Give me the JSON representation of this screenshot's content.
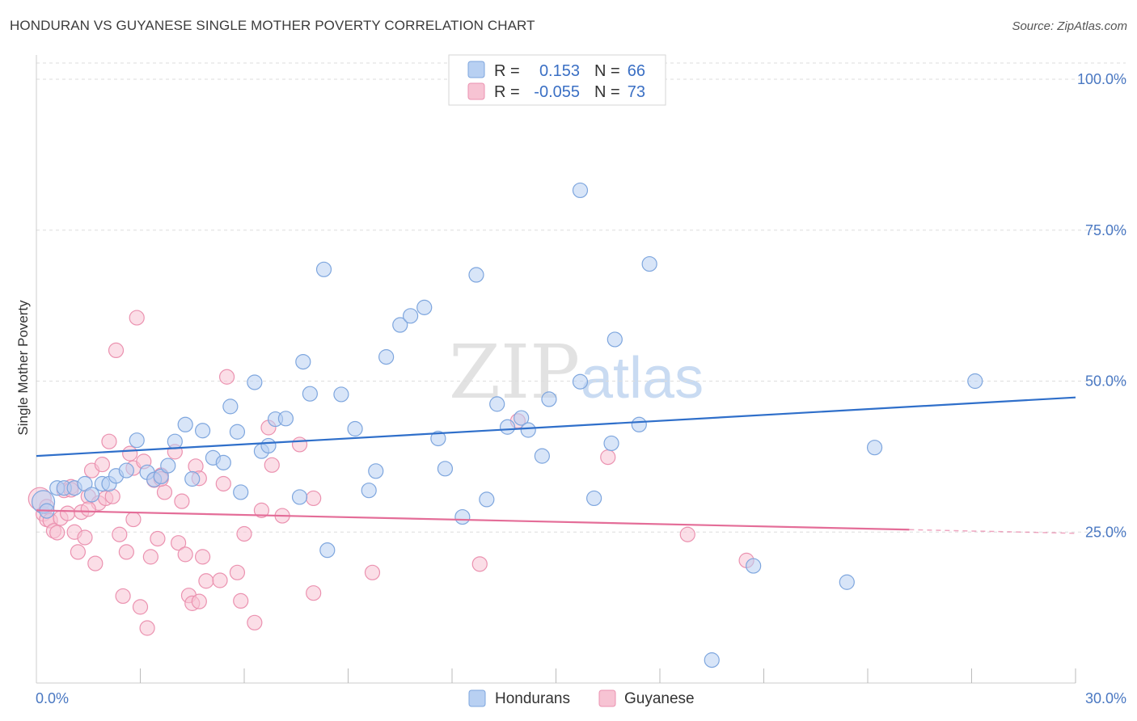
{
  "title": "HONDURAN VS GUYANESE SINGLE MOTHER POVERTY CORRELATION CHART",
  "source": "Source: ZipAtlas.com",
  "watermark": {
    "zip": "ZIP",
    "atlas": "atlas"
  },
  "colors": {
    "blue_fill": "#b8d0f2",
    "blue_stroke": "#7ea6de",
    "blue_line": "#2f6fca",
    "pink_fill": "#f7c3d3",
    "pink_stroke": "#eb92b0",
    "pink_line": "#e46d98",
    "tick_text": "#4a78c2",
    "grid": "#dddddd"
  },
  "legend": {
    "r_label": "R =",
    "n_label": "N =",
    "rows": [
      {
        "series": "Hondurans",
        "r": "0.153",
        "n": "66"
      },
      {
        "series": "Guyanese",
        "r": "-0.055",
        "n": "73"
      }
    ]
  },
  "chart_data": {
    "type": "scatter",
    "title": "HONDURAN VS GUYANESE SINGLE MOTHER POVERTY CORRELATION CHART",
    "xlabel": "",
    "ylabel": "Single Mother Poverty",
    "xlim": [
      0,
      30
    ],
    "ylim": [
      0,
      100
    ],
    "x_tick_labels": [
      "0.0%",
      "30.0%"
    ],
    "y_tick_labels": [
      {
        "value": 25,
        "label": "25.0%"
      },
      {
        "value": 50,
        "label": "50.0%"
      },
      {
        "value": 75,
        "label": "75.0%"
      },
      {
        "value": 100,
        "label": "100.0%"
      }
    ],
    "grid": "horizontal dashed",
    "legend_placement": "bottom",
    "series": [
      {
        "name": "Hondurans",
        "r": 0.153,
        "n": 66,
        "trend": {
          "x": [
            0,
            30
          ],
          "y": [
            37.6,
            47.3
          ]
        },
        "points": [
          [
            0.2,
            30.0
          ],
          [
            0.3,
            28.5
          ],
          [
            0.6,
            32.3
          ],
          [
            0.8,
            32.3
          ],
          [
            1.1,
            32.3
          ],
          [
            1.4,
            33.0
          ],
          [
            1.6,
            31.2
          ],
          [
            1.9,
            33.0
          ],
          [
            2.1,
            33.0
          ],
          [
            2.3,
            34.3
          ],
          [
            2.6,
            35.2
          ],
          [
            2.9,
            40.2
          ],
          [
            3.2,
            34.9
          ],
          [
            3.4,
            33.7
          ],
          [
            3.6,
            34.2
          ],
          [
            3.8,
            36.0
          ],
          [
            4.0,
            40.0
          ],
          [
            4.3,
            42.8
          ],
          [
            4.5,
            33.8
          ],
          [
            4.8,
            41.8
          ],
          [
            5.1,
            37.3
          ],
          [
            5.4,
            36.5
          ],
          [
            5.6,
            45.8
          ],
          [
            5.8,
            41.6
          ],
          [
            5.9,
            31.6
          ],
          [
            6.3,
            49.8
          ],
          [
            6.5,
            38.4
          ],
          [
            6.7,
            39.3
          ],
          [
            6.9,
            43.7
          ],
          [
            7.2,
            43.8
          ],
          [
            7.6,
            30.8
          ],
          [
            7.7,
            53.2
          ],
          [
            7.9,
            47.9
          ],
          [
            8.3,
            68.5
          ],
          [
            8.4,
            22.0
          ],
          [
            8.8,
            47.8
          ],
          [
            9.2,
            42.1
          ],
          [
            9.6,
            31.9
          ],
          [
            9.8,
            35.1
          ],
          [
            10.1,
            54.0
          ],
          [
            10.5,
            59.3
          ],
          [
            10.8,
            60.8
          ],
          [
            11.2,
            62.2
          ],
          [
            11.6,
            40.5
          ],
          [
            11.8,
            35.5
          ],
          [
            12.3,
            27.5
          ],
          [
            12.7,
            67.6
          ],
          [
            13.0,
            30.4
          ],
          [
            13.3,
            46.2
          ],
          [
            13.6,
            42.4
          ],
          [
            14.0,
            43.9
          ],
          [
            14.2,
            41.9
          ],
          [
            14.6,
            37.6
          ],
          [
            14.8,
            47.0
          ],
          [
            15.7,
            49.9
          ],
          [
            15.7,
            81.6
          ],
          [
            16.1,
            30.6
          ],
          [
            16.6,
            39.7
          ],
          [
            16.7,
            56.9
          ],
          [
            17.4,
            42.8
          ],
          [
            17.7,
            69.4
          ],
          [
            19.5,
            3.8
          ],
          [
            20.7,
            19.4
          ],
          [
            23.4,
            16.7
          ],
          [
            24.2,
            39.0
          ],
          [
            27.1,
            50.0
          ]
        ]
      },
      {
        "name": "Guyanese",
        "r": -0.055,
        "n": 73,
        "trend": {
          "x": [
            0,
            25.2
          ],
          "y": [
            28.6,
            25.4
          ]
        },
        "trend_dashed": {
          "x": [
            25.2,
            30
          ],
          "y": [
            25.4,
            24.8
          ]
        },
        "points": [
          [
            0.1,
            30.5
          ],
          [
            0.2,
            28.0
          ],
          [
            0.3,
            27.1
          ],
          [
            0.4,
            26.9
          ],
          [
            0.5,
            25.2
          ],
          [
            0.6,
            24.9
          ],
          [
            0.7,
            27.3
          ],
          [
            0.8,
            31.9
          ],
          [
            0.9,
            28.1
          ],
          [
            1.0,
            32.5
          ],
          [
            1.1,
            25.0
          ],
          [
            1.2,
            21.7
          ],
          [
            1.3,
            28.3
          ],
          [
            1.4,
            24.1
          ],
          [
            1.5,
            30.9
          ],
          [
            1.6,
            35.2
          ],
          [
            1.7,
            19.8
          ],
          [
            1.8,
            29.8
          ],
          [
            1.9,
            36.2
          ],
          [
            2.0,
            30.6
          ],
          [
            2.1,
            40.0
          ],
          [
            2.2,
            30.9
          ],
          [
            2.3,
            55.1
          ],
          [
            2.4,
            24.6
          ],
          [
            2.5,
            14.4
          ],
          [
            2.6,
            21.7
          ],
          [
            2.7,
            38.0
          ],
          [
            2.8,
            35.6
          ],
          [
            2.8,
            27.1
          ],
          [
            2.9,
            60.5
          ],
          [
            3.0,
            12.6
          ],
          [
            3.1,
            36.7
          ],
          [
            3.2,
            9.1
          ],
          [
            3.3,
            20.9
          ],
          [
            3.4,
            33.6
          ],
          [
            3.5,
            23.9
          ],
          [
            3.6,
            34.4
          ],
          [
            3.7,
            31.6
          ],
          [
            4.0,
            38.3
          ],
          [
            4.1,
            23.2
          ],
          [
            4.2,
            30.1
          ],
          [
            4.3,
            21.3
          ],
          [
            4.4,
            14.5
          ],
          [
            4.5,
            13.2
          ],
          [
            4.6,
            35.9
          ],
          [
            4.7,
            33.9
          ],
          [
            4.7,
            13.5
          ],
          [
            4.8,
            20.9
          ],
          [
            4.9,
            16.9
          ],
          [
            5.3,
            17.0
          ],
          [
            5.4,
            33.0
          ],
          [
            5.5,
            50.7
          ],
          [
            5.8,
            18.3
          ],
          [
            5.9,
            13.6
          ],
          [
            6.0,
            24.7
          ],
          [
            6.3,
            10.0
          ],
          [
            6.5,
            28.6
          ],
          [
            6.7,
            42.3
          ],
          [
            6.8,
            36.1
          ],
          [
            7.1,
            27.7
          ],
          [
            7.6,
            39.5
          ],
          [
            8.0,
            30.6
          ],
          [
            8.0,
            14.9
          ],
          [
            9.7,
            18.3
          ],
          [
            12.8,
            19.7
          ],
          [
            13.9,
            43.4
          ],
          [
            16.5,
            37.4
          ],
          [
            18.8,
            24.6
          ],
          [
            20.5,
            20.3
          ],
          [
            1.0,
            32.0
          ],
          [
            3.6,
            33.8
          ],
          [
            0.3,
            29.2
          ],
          [
            1.5,
            28.8
          ]
        ]
      }
    ]
  }
}
